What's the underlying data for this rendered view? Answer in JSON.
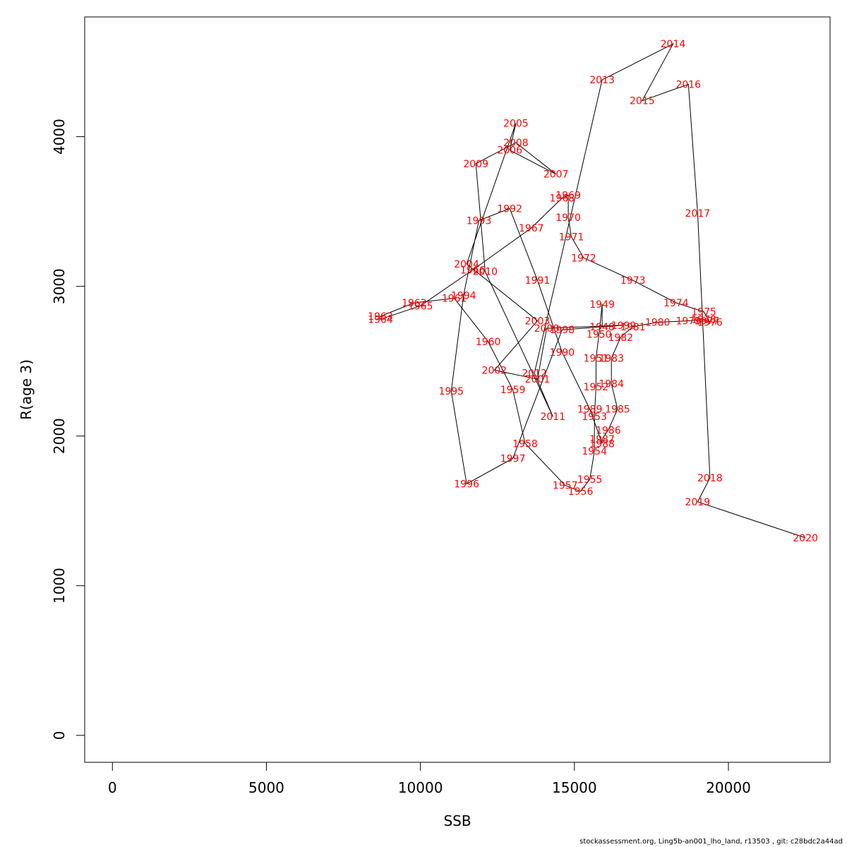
{
  "footer_text": "stockassessment.org, Ling5b-an001_lho_land, r13503 , git: c28bdc2a44ad",
  "chart_data": {
    "type": "line",
    "title": "",
    "xlabel": "SSB",
    "ylabel": "R(age 3)",
    "xlim": [
      -900,
      23300
    ],
    "ylim": [
      -180,
      4800
    ],
    "x_ticks": [
      0,
      5000,
      10000,
      15000,
      20000
    ],
    "y_ticks": [
      0,
      1000,
      2000,
      3000,
      4000
    ],
    "line_color": "#000000",
    "label_color": "#ff0000",
    "grid": false,
    "points": [
      {
        "label": "1948",
        "x": 15900,
        "y": 2730
      },
      {
        "label": "1949",
        "x": 15900,
        "y": 2880
      },
      {
        "label": "1950",
        "x": 15800,
        "y": 2680
      },
      {
        "label": "1951",
        "x": 15700,
        "y": 2520
      },
      {
        "label": "1952",
        "x": 15700,
        "y": 2330
      },
      {
        "label": "1953",
        "x": 15650,
        "y": 2130
      },
      {
        "label": "1954",
        "x": 15650,
        "y": 1900
      },
      {
        "label": "1955",
        "x": 15500,
        "y": 1710
      },
      {
        "label": "1956",
        "x": 15200,
        "y": 1630
      },
      {
        "label": "1957",
        "x": 14700,
        "y": 1670
      },
      {
        "label": "1958",
        "x": 13400,
        "y": 1950
      },
      {
        "label": "1959",
        "x": 13000,
        "y": 2310
      },
      {
        "label": "1960",
        "x": 12200,
        "y": 2630
      },
      {
        "label": "1961",
        "x": 11100,
        "y": 2920
      },
      {
        "label": "1962",
        "x": 9800,
        "y": 2890
      },
      {
        "label": "1963",
        "x": 8700,
        "y": 2800
      },
      {
        "label": "1964",
        "x": 8700,
        "y": 2780
      },
      {
        "label": "1965",
        "x": 10000,
        "y": 2870
      },
      {
        "label": "1966",
        "x": 11700,
        "y": 3110
      },
      {
        "label": "1967",
        "x": 13600,
        "y": 3390
      },
      {
        "label": "1968",
        "x": 14600,
        "y": 3590
      },
      {
        "label": "1969",
        "x": 14800,
        "y": 3610
      },
      {
        "label": "1970",
        "x": 14800,
        "y": 3460
      },
      {
        "label": "1971",
        "x": 14900,
        "y": 3330
      },
      {
        "label": "1972",
        "x": 15300,
        "y": 3190
      },
      {
        "label": "1973",
        "x": 16900,
        "y": 3040
      },
      {
        "label": "1974",
        "x": 18300,
        "y": 2890
      },
      {
        "label": "1975",
        "x": 19200,
        "y": 2830
      },
      {
        "label": "1976",
        "x": 19400,
        "y": 2760
      },
      {
        "label": "1977",
        "x": 19300,
        "y": 2770
      },
      {
        "label": "1978",
        "x": 19200,
        "y": 2780
      },
      {
        "label": "1979",
        "x": 18700,
        "y": 2770
      },
      {
        "label": "1980",
        "x": 17700,
        "y": 2760
      },
      {
        "label": "1981",
        "x": 16900,
        "y": 2730
      },
      {
        "label": "1982",
        "x": 16500,
        "y": 2660
      },
      {
        "label": "1983",
        "x": 16200,
        "y": 2520
      },
      {
        "label": "1984",
        "x": 16200,
        "y": 2350
      },
      {
        "label": "1985",
        "x": 16400,
        "y": 2180
      },
      {
        "label": "1986",
        "x": 16100,
        "y": 2040
      },
      {
        "label": "1987",
        "x": 15900,
        "y": 1980
      },
      {
        "label": "1988",
        "x": 15900,
        "y": 1950
      },
      {
        "label": "1989",
        "x": 15500,
        "y": 2180
      },
      {
        "label": "1990",
        "x": 14600,
        "y": 2560
      },
      {
        "label": "1991",
        "x": 13800,
        "y": 3040
      },
      {
        "label": "1992",
        "x": 12900,
        "y": 3520
      },
      {
        "label": "1993",
        "x": 11900,
        "y": 3440
      },
      {
        "label": "1994",
        "x": 11400,
        "y": 2940
      },
      {
        "label": "1995",
        "x": 11000,
        "y": 2300
      },
      {
        "label": "1996",
        "x": 11500,
        "y": 1680
      },
      {
        "label": "1997",
        "x": 13000,
        "y": 1850
      },
      {
        "label": "1998",
        "x": 14600,
        "y": 2710
      },
      {
        "label": "1999",
        "x": 16600,
        "y": 2740
      },
      {
        "label": "2000",
        "x": 14100,
        "y": 2720
      },
      {
        "label": "2001",
        "x": 13800,
        "y": 2380
      },
      {
        "label": "2002",
        "x": 12400,
        "y": 2440
      },
      {
        "label": "2003",
        "x": 13800,
        "y": 2770
      },
      {
        "label": "2004",
        "x": 11500,
        "y": 3150
      },
      {
        "label": "2005",
        "x": 13100,
        "y": 4090
      },
      {
        "label": "2006",
        "x": 12900,
        "y": 3910
      },
      {
        "label": "2007",
        "x": 14400,
        "y": 3750
      },
      {
        "label": "2008",
        "x": 13100,
        "y": 3960
      },
      {
        "label": "2009",
        "x": 11800,
        "y": 3820
      },
      {
        "label": "2010",
        "x": 12100,
        "y": 3100
      },
      {
        "label": "2011",
        "x": 14300,
        "y": 2130
      },
      {
        "label": "2012",
        "x": 13700,
        "y": 2420
      },
      {
        "label": "2013",
        "x": 15900,
        "y": 4380
      },
      {
        "label": "2014",
        "x": 18200,
        "y": 4620
      },
      {
        "label": "2015",
        "x": 17200,
        "y": 4240
      },
      {
        "label": "2016",
        "x": 18700,
        "y": 4350
      },
      {
        "label": "2017",
        "x": 19000,
        "y": 3490
      },
      {
        "label": "2018",
        "x": 19400,
        "y": 1720
      },
      {
        "label": "2019",
        "x": 19000,
        "y": 1560
      },
      {
        "label": "2020",
        "x": 22500,
        "y": 1320
      }
    ]
  }
}
